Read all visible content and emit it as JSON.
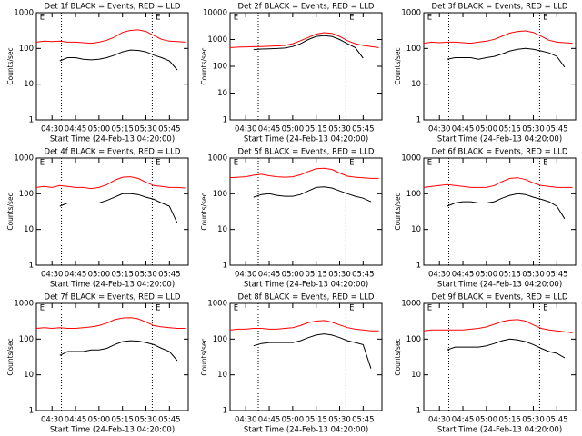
{
  "chart_data": [
    {
      "type": "line",
      "title": "Det 1f BLACK = Events, RED = LLD",
      "xlabel": "Start Time (24-Feb-13 04:20:00)",
      "ylabel": "Counts/sec",
      "log_y": true,
      "xlim": [
        "04:20",
        "05:57"
      ],
      "xticks": [
        "04:30",
        "04:45",
        "05:00",
        "05:15",
        "05:30",
        "05:45"
      ],
      "ylim": [
        1,
        1000
      ],
      "yticks": [
        1,
        10,
        100,
        1000
      ],
      "vlines": [
        "04:36",
        "05:34"
      ],
      "markers": [
        {
          "x": "04:21",
          "label": "E"
        },
        {
          "x": "05:35",
          "label": "E"
        }
      ],
      "x": [
        "04:20",
        "04:25",
        "04:30",
        "04:35",
        "04:40",
        "04:45",
        "04:50",
        "04:55",
        "05:00",
        "05:05",
        "05:10",
        "05:15",
        "05:20",
        "05:25",
        "05:30",
        "05:35",
        "05:40",
        "05:45",
        "05:50",
        "05:55"
      ],
      "series": [
        {
          "color": "#ff0000",
          "values": [
            150,
            160,
            155,
            160,
            150,
            150,
            145,
            140,
            150,
            170,
            210,
            280,
            320,
            330,
            300,
            230,
            180,
            160,
            155,
            150
          ]
        },
        {
          "color": "#000000",
          "values": [
            null,
            null,
            null,
            45,
            55,
            55,
            50,
            48,
            50,
            55,
            65,
            80,
            90,
            88,
            80,
            65,
            55,
            45,
            25,
            null
          ]
        }
      ]
    },
    {
      "type": "line",
      "title": "Det 2f BLACK = Events, RED = LLD",
      "xlabel": "Start Time (24-Feb-13 04:20:00)",
      "ylabel": "Counts/sec",
      "log_y": true,
      "xlim": [
        "04:20",
        "05:57"
      ],
      "xticks": [
        "04:30",
        "04:45",
        "05:00",
        "05:15",
        "05:30",
        "05:45"
      ],
      "ylim": [
        1,
        10000
      ],
      "yticks": [
        1,
        10,
        100,
        1000,
        10000
      ],
      "vlines": [
        "04:38",
        "05:34"
      ],
      "markers": [
        {
          "x": "04:21",
          "label": "E"
        },
        {
          "x": "05:35",
          "label": "E"
        }
      ],
      "x": [
        "04:20",
        "04:25",
        "04:30",
        "04:35",
        "04:40",
        "04:45",
        "04:50",
        "04:55",
        "05:00",
        "05:05",
        "05:10",
        "05:15",
        "05:20",
        "05:25",
        "05:30",
        "05:35",
        "05:40",
        "05:45",
        "05:50",
        "05:55"
      ],
      "series": [
        {
          "color": "#ff0000",
          "values": [
            500,
            520,
            530,
            540,
            550,
            560,
            580,
            600,
            700,
            900,
            1200,
            1600,
            1800,
            1700,
            1300,
            900,
            700,
            600,
            550,
            500
          ]
        },
        {
          "color": "#000000",
          "values": [
            null,
            null,
            null,
            420,
            440,
            450,
            460,
            480,
            550,
            700,
            1000,
            1300,
            1400,
            1300,
            1000,
            700,
            500,
            200,
            null,
            null
          ]
        }
      ]
    },
    {
      "type": "line",
      "title": "Det 3f BLACK = Events, RED = LLD",
      "xlabel": "Start Time (24-Feb-13 04:20:00)",
      "ylabel": "Counts/sec",
      "log_y": true,
      "xlim": [
        "04:20",
        "05:57"
      ],
      "xticks": [
        "04:30",
        "04:45",
        "05:00",
        "05:15",
        "05:30",
        "05:45"
      ],
      "ylim": [
        1,
        1000
      ],
      "yticks": [
        1,
        10,
        100,
        1000
      ],
      "vlines": [
        "04:36",
        "05:34"
      ],
      "markers": [
        {
          "x": "04:21",
          "label": "E"
        },
        {
          "x": "05:35",
          "label": "E"
        }
      ],
      "x": [
        "04:20",
        "04:25",
        "04:30",
        "04:35",
        "04:40",
        "04:45",
        "04:50",
        "04:55",
        "05:00",
        "05:05",
        "05:10",
        "05:15",
        "05:20",
        "05:25",
        "05:30",
        "05:35",
        "05:40",
        "05:45",
        "05:50",
        "05:55"
      ],
      "series": [
        {
          "color": "#ff0000",
          "values": [
            140,
            150,
            145,
            150,
            150,
            145,
            140,
            150,
            160,
            180,
            220,
            270,
            300,
            310,
            280,
            220,
            170,
            150,
            145,
            140
          ]
        },
        {
          "color": "#000000",
          "values": [
            null,
            null,
            null,
            50,
            55,
            55,
            55,
            50,
            55,
            60,
            70,
            85,
            95,
            100,
            95,
            85,
            75,
            60,
            30,
            null
          ]
        }
      ]
    },
    {
      "type": "line",
      "title": "Det 4f BLACK = Events, RED = LLD",
      "xlabel": "Start Time (24-Feb-13 04:20:00)",
      "ylabel": "Counts/sec",
      "log_y": true,
      "xlim": [
        "04:20",
        "05:57"
      ],
      "xticks": [
        "04:30",
        "04:45",
        "05:00",
        "05:15",
        "05:30",
        "05:45"
      ],
      "ylim": [
        1,
        1000
      ],
      "yticks": [
        1,
        10,
        100,
        1000
      ],
      "vlines": [
        "04:36",
        "05:34"
      ],
      "markers": [
        {
          "x": "04:21",
          "label": "E"
        },
        {
          "x": "05:35",
          "label": "E"
        }
      ],
      "x": [
        "04:20",
        "04:25",
        "04:30",
        "04:35",
        "04:40",
        "04:45",
        "04:50",
        "04:55",
        "05:00",
        "05:05",
        "05:10",
        "05:15",
        "05:20",
        "05:25",
        "05:30",
        "05:35",
        "05:40",
        "05:45",
        "05:50",
        "05:55"
      ],
      "series": [
        {
          "color": "#ff0000",
          "values": [
            150,
            160,
            150,
            170,
            160,
            150,
            150,
            140,
            150,
            180,
            240,
            290,
            300,
            270,
            210,
            170,
            160,
            150,
            150,
            145
          ]
        },
        {
          "color": "#000000",
          "values": [
            null,
            null,
            null,
            45,
            55,
            55,
            55,
            55,
            55,
            65,
            80,
            100,
            100,
            95,
            80,
            70,
            55,
            45,
            15,
            null
          ]
        }
      ]
    },
    {
      "type": "line",
      "title": "Det 5f BLACK = Events, RED = LLD",
      "xlabel": "Start Time (24-Feb-13 04:20:00)",
      "ylabel": "Counts/sec",
      "log_y": true,
      "xlim": [
        "04:20",
        "05:57"
      ],
      "xticks": [
        "04:30",
        "04:45",
        "05:00",
        "05:15",
        "05:30",
        "05:45"
      ],
      "ylim": [
        1,
        1000
      ],
      "yticks": [
        1,
        10,
        100,
        1000
      ],
      "vlines": [
        "04:38",
        "05:34"
      ],
      "markers": [
        {
          "x": "04:21",
          "label": "E"
        },
        {
          "x": "05:35",
          "label": "E"
        }
      ],
      "x": [
        "04:20",
        "04:25",
        "04:30",
        "04:35",
        "04:40",
        "04:45",
        "04:50",
        "04:55",
        "05:00",
        "05:05",
        "05:10",
        "05:15",
        "05:20",
        "05:25",
        "05:30",
        "05:35",
        "05:40",
        "05:45",
        "05:50",
        "05:55"
      ],
      "series": [
        {
          "color": "#ff0000",
          "values": [
            280,
            290,
            300,
            330,
            350,
            320,
            300,
            290,
            300,
            340,
            420,
            500,
            520,
            480,
            380,
            310,
            290,
            280,
            270,
            270
          ]
        },
        {
          "color": "#000000",
          "values": [
            null,
            null,
            null,
            80,
            95,
            100,
            90,
            85,
            85,
            95,
            120,
            150,
            155,
            145,
            120,
            100,
            85,
            75,
            60,
            null
          ]
        }
      ]
    },
    {
      "type": "line",
      "title": "Det 6f BLACK = Events, RED = LLD",
      "xlabel": "Start Time (24-Feb-13 04:20:00)",
      "ylabel": "Counts/sec",
      "log_y": true,
      "xlim": [
        "04:20",
        "05:57"
      ],
      "xticks": [
        "04:30",
        "04:45",
        "05:00",
        "05:15",
        "05:30",
        "05:45"
      ],
      "ylim": [
        1,
        1000
      ],
      "yticks": [
        1,
        10,
        100,
        1000
      ],
      "vlines": [
        "04:36",
        "05:34"
      ],
      "markers": [
        {
          "x": "04:21",
          "label": "E"
        },
        {
          "x": "05:35",
          "label": "E"
        }
      ],
      "x": [
        "04:20",
        "04:25",
        "04:30",
        "04:35",
        "04:40",
        "04:45",
        "04:50",
        "04:55",
        "05:00",
        "05:05",
        "05:10",
        "05:15",
        "05:20",
        "05:25",
        "05:30",
        "05:35",
        "05:40",
        "05:45",
        "05:50",
        "05:55"
      ],
      "series": [
        {
          "color": "#ff0000",
          "values": [
            150,
            160,
            170,
            180,
            170,
            160,
            150,
            150,
            150,
            170,
            220,
            270,
            280,
            250,
            200,
            170,
            160,
            150,
            150,
            150
          ]
        },
        {
          "color": "#000000",
          "values": [
            null,
            null,
            null,
            45,
            55,
            60,
            60,
            55,
            55,
            60,
            75,
            90,
            100,
            95,
            80,
            70,
            60,
            45,
            20,
            null
          ]
        }
      ]
    },
    {
      "type": "line",
      "title": "Det 7f BLACK = Events, RED = LLD",
      "xlabel": "Start Time (24-Feb-13 04:20:00)",
      "ylabel": "Counts/sec",
      "log_y": true,
      "xlim": [
        "04:20",
        "05:57"
      ],
      "xticks": [
        "04:30",
        "04:45",
        "05:00",
        "05:15",
        "05:30",
        "05:45"
      ],
      "ylim": [
        1,
        1000
      ],
      "yticks": [
        1,
        10,
        100,
        1000
      ],
      "vlines": [
        "04:36",
        "05:34"
      ],
      "markers": [
        {
          "x": "04:21",
          "label": "E"
        },
        {
          "x": "05:35",
          "label": "E"
        }
      ],
      "x": [
        "04:20",
        "04:25",
        "04:30",
        "04:35",
        "04:40",
        "04:45",
        "04:50",
        "04:55",
        "05:00",
        "05:05",
        "05:10",
        "05:15",
        "05:20",
        "05:25",
        "05:30",
        "05:35",
        "05:40",
        "05:45",
        "05:50",
        "05:55"
      ],
      "series": [
        {
          "color": "#ff0000",
          "values": [
            200,
            210,
            200,
            210,
            200,
            200,
            210,
            220,
            240,
            280,
            350,
            390,
            400,
            370,
            300,
            240,
            220,
            210,
            200,
            200
          ]
        },
        {
          "color": "#000000",
          "values": [
            null,
            null,
            null,
            35,
            45,
            45,
            45,
            50,
            50,
            55,
            70,
            85,
            90,
            88,
            80,
            70,
            55,
            45,
            25,
            null
          ]
        }
      ]
    },
    {
      "type": "line",
      "title": "Det 8f BLACK = Events, RED = LLD",
      "xlabel": "Start Time (24-Feb-13 04:20:00)",
      "ylabel": "Counts/sec",
      "log_y": true,
      "xlim": [
        "04:20",
        "05:57"
      ],
      "xticks": [
        "04:30",
        "04:45",
        "05:00",
        "05:15",
        "05:30",
        "05:45"
      ],
      "ylim": [
        1,
        1000
      ],
      "yticks": [
        1,
        10,
        100,
        1000
      ],
      "vlines": [
        "04:38",
        "05:34"
      ],
      "markers": [
        {
          "x": "04:21",
          "label": "E"
        },
        {
          "x": "05:35",
          "label": "E"
        }
      ],
      "x": [
        "04:20",
        "04:25",
        "04:30",
        "04:35",
        "04:40",
        "04:45",
        "04:50",
        "04:55",
        "05:00",
        "05:05",
        "05:10",
        "05:15",
        "05:20",
        "05:25",
        "05:30",
        "05:35",
        "05:40",
        "05:45",
        "05:50",
        "05:55"
      ],
      "series": [
        {
          "color": "#ff0000",
          "values": [
            180,
            190,
            190,
            200,
            200,
            190,
            190,
            200,
            210,
            240,
            290,
            320,
            330,
            300,
            250,
            210,
            190,
            180,
            170,
            170
          ]
        },
        {
          "color": "#000000",
          "values": [
            null,
            null,
            null,
            65,
            75,
            80,
            80,
            80,
            80,
            90,
            110,
            130,
            140,
            130,
            110,
            90,
            80,
            70,
            15,
            null
          ]
        }
      ]
    },
    {
      "type": "line",
      "title": "Det 9f BLACK = Events, RED = LLD",
      "xlabel": "Start Time (24-Feb-13 04:20:00)",
      "ylabel": "Counts/sec",
      "log_y": true,
      "xlim": [
        "04:20",
        "05:57"
      ],
      "xticks": [
        "04:30",
        "04:45",
        "05:00",
        "05:15",
        "05:30",
        "05:45"
      ],
      "ylim": [
        1,
        1000
      ],
      "yticks": [
        1,
        10,
        100,
        1000
      ],
      "vlines": [
        "04:36",
        "05:34"
      ],
      "markers": [
        {
          "x": "04:21",
          "label": "E"
        },
        {
          "x": "05:35",
          "label": "E"
        }
      ],
      "x": [
        "04:20",
        "04:25",
        "04:30",
        "04:35",
        "04:40",
        "04:45",
        "04:50",
        "04:55",
        "05:00",
        "05:05",
        "05:10",
        "05:15",
        "05:20",
        "05:25",
        "05:30",
        "05:35",
        "05:40",
        "05:45",
        "05:50",
        "05:55"
      ],
      "series": [
        {
          "color": "#ff0000",
          "values": [
            170,
            180,
            180,
            180,
            180,
            180,
            190,
            200,
            220,
            260,
            310,
            340,
            350,
            320,
            250,
            200,
            180,
            170,
            160,
            150
          ]
        },
        {
          "color": "#000000",
          "values": [
            null,
            null,
            null,
            50,
            60,
            60,
            60,
            60,
            65,
            75,
            90,
            100,
            95,
            85,
            70,
            55,
            45,
            40,
            30,
            null
          ]
        }
      ]
    }
  ]
}
